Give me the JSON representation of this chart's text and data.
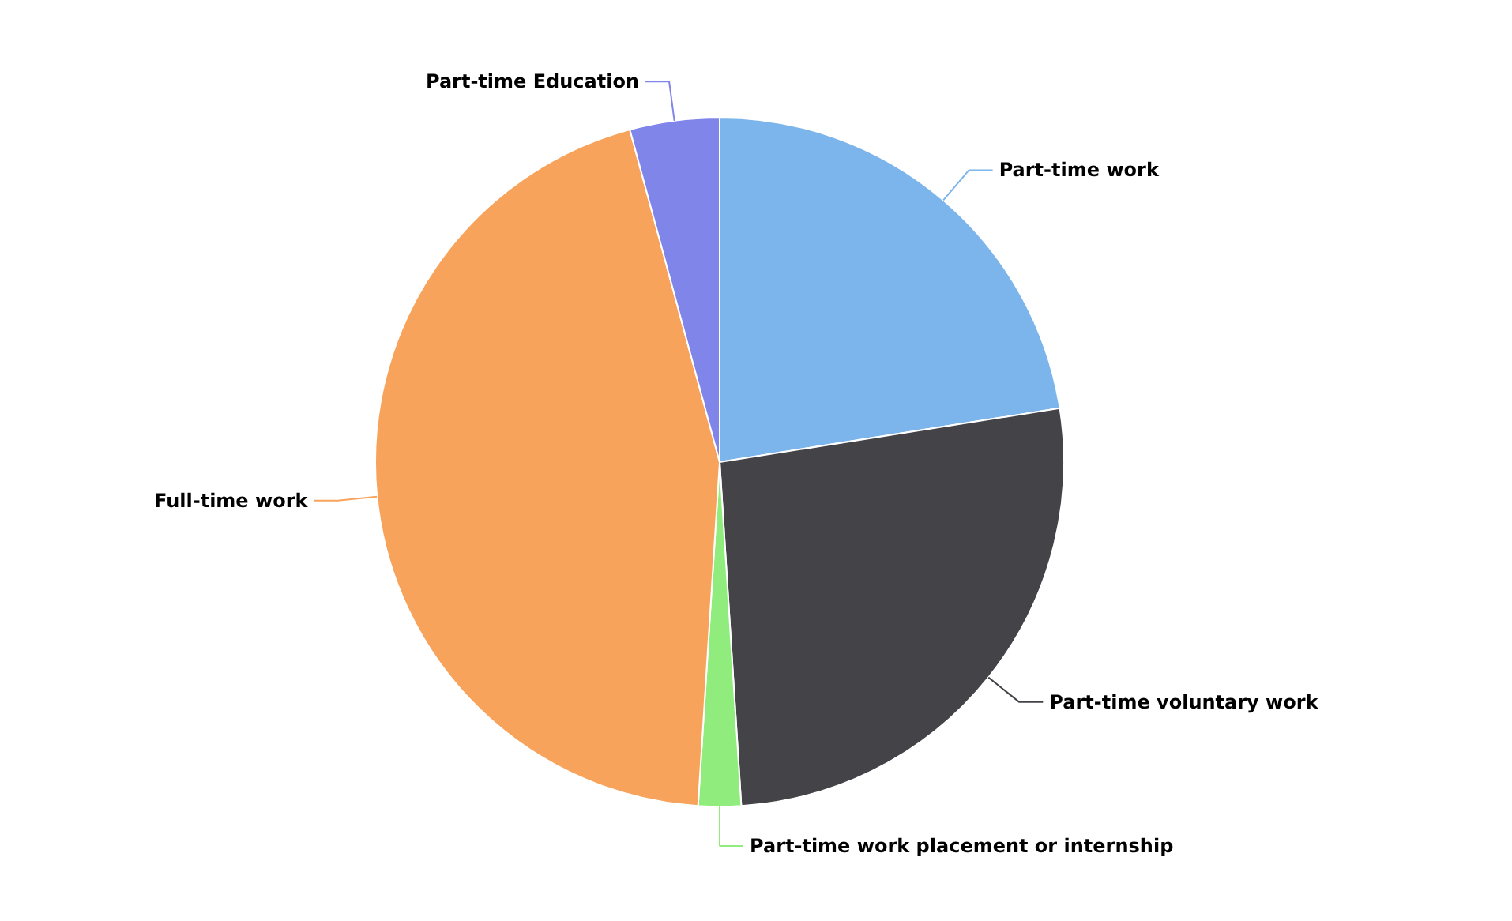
{
  "chart_data": {
    "type": "pie",
    "categories": [
      "Part-time work",
      "Part-time voluntary work",
      "Part-time work placement or internship",
      "Full-time work",
      "Part-time Education"
    ],
    "values": [
      22.5,
      26.5,
      2,
      44.8,
      4.2
    ],
    "colors": [
      "#7cb5ec",
      "#434348",
      "#90ed7d",
      "#f7a35c",
      "#8085e9"
    ]
  }
}
